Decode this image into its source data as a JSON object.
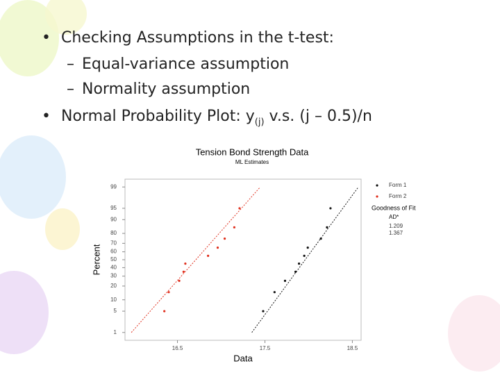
{
  "slide": {
    "bullets": [
      {
        "text": "Checking Assumptions in the t-test:",
        "subs": [
          "Equal-variance assumption",
          "Normality assumption"
        ]
      },
      {
        "text": "Normal Probability Plot: y",
        "subscript": "(j)",
        "tail": " v.s. (j – 0.5)/n"
      }
    ]
  },
  "chart_data": {
    "type": "probability-plot",
    "title": "Tension Bond Strength Data",
    "subtitle": "ML Estimates",
    "x_label": "Data",
    "y_label": "Percent",
    "y_scale": "normal-probability",
    "xlim": [
      15.9,
      18.6
    ],
    "xticks": [
      16.5,
      17.5,
      18.5
    ],
    "ylim": [
      0.5,
      99.5
    ],
    "yticks": [
      1,
      5,
      10,
      20,
      30,
      40,
      50,
      60,
      70,
      80,
      90,
      95,
      99
    ],
    "goodness_title": "Goodness of Fit",
    "goodness_header": "AD*",
    "series": [
      {
        "name": "Form 1",
        "color": "#111111",
        "ad": 1.209,
        "x": [
          17.48,
          17.61,
          17.73,
          17.85,
          17.89,
          17.95,
          17.99,
          18.14,
          18.21,
          18.25
        ],
        "values": [
          5,
          15,
          25,
          35,
          45,
          55,
          65,
          75,
          85,
          95
        ],
        "fit": {
          "mean": 17.96,
          "sd": 0.262
        }
      },
      {
        "name": "Form 2",
        "color": "#e0301e",
        "ad": 1.367,
        "x": [
          16.35,
          16.4,
          16.52,
          16.57,
          16.59,
          16.85,
          16.96,
          17.04,
          17.15,
          17.21
        ],
        "values": [
          5,
          15,
          25,
          35,
          45,
          55,
          65,
          75,
          85,
          95
        ],
        "fit": {
          "mean": 16.71,
          "sd": 0.317
        }
      }
    ]
  }
}
